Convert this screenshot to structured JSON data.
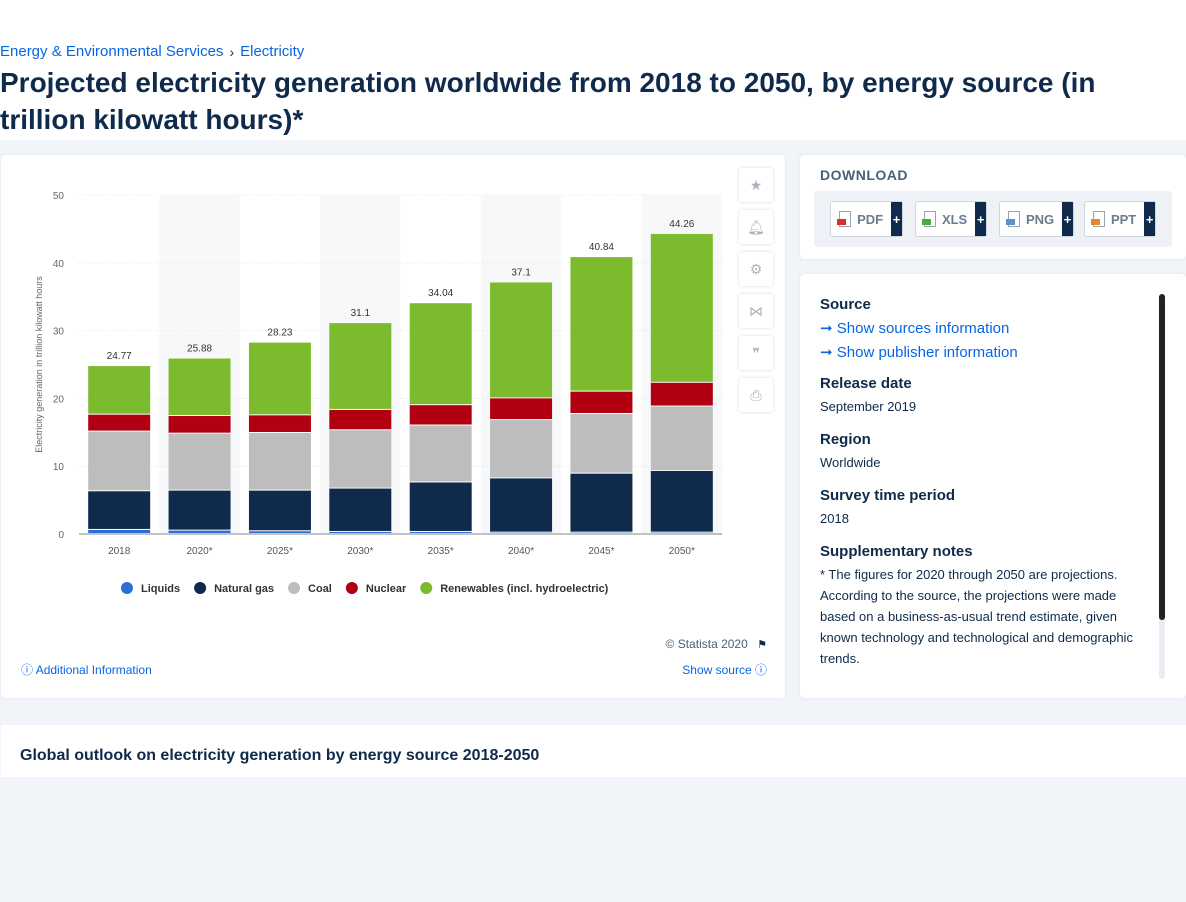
{
  "breadcrumb": {
    "item1": "Energy & Environmental Services",
    "sep": "›",
    "item2": "Electricity"
  },
  "page_title": "Projected electricity generation worldwide from 2018 to 2050, by energy source (in trillion kilowatt hours)*",
  "download": {
    "title": "DOWNLOAD",
    "buttons": [
      {
        "label": "PDF",
        "plus": "+",
        "color": "#d9302a"
      },
      {
        "label": "XLS",
        "plus": "+",
        "color": "#4cab3f"
      },
      {
        "label": "PNG",
        "plus": "+",
        "color": "#5a8fd0"
      },
      {
        "label": "PPT",
        "plus": "+",
        "color": "#e8862e"
      }
    ]
  },
  "tools": [
    "star-icon",
    "bell-icon",
    "gear-icon",
    "share-icon",
    "quote-icon",
    "print-icon"
  ],
  "info": {
    "source_h": "Source",
    "show_sources": "Show sources information",
    "show_publisher": "Show publisher information",
    "release_h": "Release date",
    "release_v": "September 2019",
    "region_h": "Region",
    "region_v": "Worldwide",
    "survey_h": "Survey time period",
    "survey_v": "2018",
    "notes_h": "Supplementary notes",
    "notes_v": "* The figures for 2020 through 2050 are projections. According to the source, the projections were made based on a business-as-usual trend estimate, given known technology and technological and demographic trends."
  },
  "footer": {
    "copyright": "© Statista 2020",
    "additional": "Additional Information",
    "show_source": "Show source"
  },
  "outlook_title": "Global outlook on electricity generation by energy source 2018-2050",
  "chart_data": {
    "type": "bar",
    "stacked": true,
    "categories": [
      "2018",
      "2020*",
      "2025*",
      "2030*",
      "2035*",
      "2040*",
      "2045*",
      "2050*"
    ],
    "ylabel": "Electricity generation in trillion kilowatt hours",
    "ylim": [
      0,
      50
    ],
    "yticks": [
      0,
      10,
      20,
      30,
      40,
      50
    ],
    "grid": true,
    "legend_position": "bottom",
    "totals": [
      "24.77",
      "25.88",
      "28.23",
      "31.1",
      "34.04",
      "37.1",
      "40.84",
      "44.26"
    ],
    "series": [
      {
        "name": "Liquids",
        "color": "#2c6fd6",
        "values": [
          0.6,
          0.5,
          0.4,
          0.3,
          0.3,
          0.2,
          0.2,
          0.2
        ]
      },
      {
        "name": "Natural gas",
        "color": "#0f2a4a",
        "values": [
          5.7,
          5.9,
          6.0,
          6.4,
          7.3,
          8.0,
          8.7,
          9.1
        ]
      },
      {
        "name": "Coal",
        "color": "#bdbdbd",
        "values": [
          8.8,
          8.4,
          8.5,
          8.6,
          8.4,
          8.6,
          8.8,
          9.5
        ]
      },
      {
        "name": "Nuclear",
        "color": "#b00012",
        "values": [
          2.5,
          2.6,
          2.6,
          3.0,
          3.0,
          3.2,
          3.3,
          3.5
        ]
      },
      {
        "name": "Renewables (incl. hydroelectric)",
        "color": "#7dbb2e",
        "values": [
          7.17,
          8.48,
          10.73,
          12.8,
          15.04,
          17.1,
          19.84,
          21.96
        ]
      }
    ]
  }
}
